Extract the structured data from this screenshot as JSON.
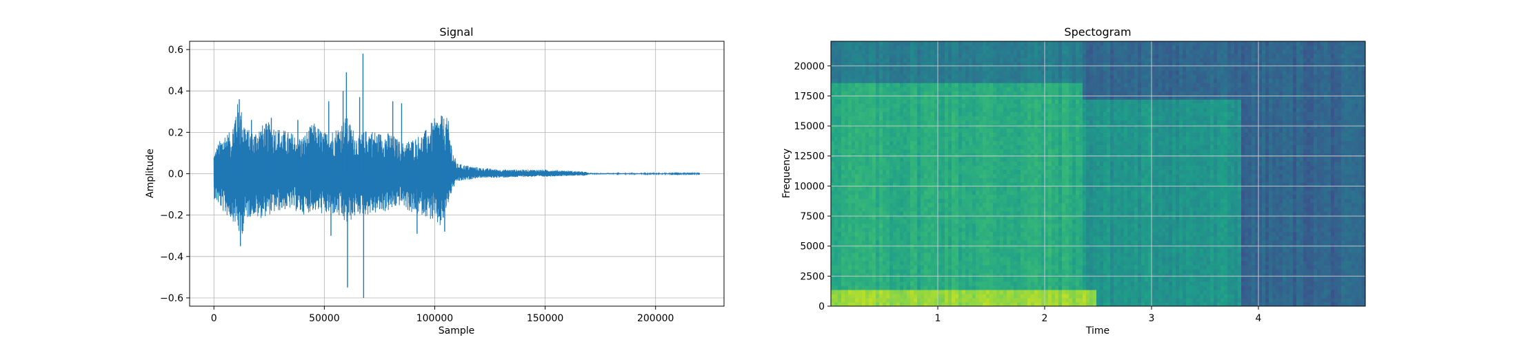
{
  "chart_data": [
    {
      "type": "line",
      "title": "Signal",
      "xlabel": "Sample",
      "ylabel": "Amplitude",
      "xlim": [
        -11000,
        231000
      ],
      "ylim": [
        -0.64,
        0.64
      ],
      "xticks": [
        0,
        50000,
        100000,
        150000,
        200000
      ],
      "xtick_labels": [
        "0",
        "50000",
        "100000",
        "150000",
        "200000"
      ],
      "yticks": [
        -0.6,
        -0.4,
        -0.2,
        0.0,
        0.2,
        0.4,
        0.6
      ],
      "ytick_labels": [
        "−0.6",
        "−0.4",
        "−0.2",
        "0.0",
        "0.2",
        "0.4",
        "0.6"
      ],
      "grid": true,
      "color": "#1f77b4",
      "series": [
        {
          "envelope": {
            "x": [
              0,
              2000,
              5000,
              8000,
              10000,
              12000,
              15000,
              18000,
              20000,
              25000,
              30000,
              35000,
              40000,
              45000,
              50000,
              55000,
              60000,
              65000,
              70000,
              75000,
              80000,
              85000,
              90000,
              95000,
              100000,
              103000,
              106000,
              108000,
              110000,
              115000,
              120000,
              130000,
              140000,
              150000,
              160000,
              168000,
              170000,
              220000
            ],
            "upper": [
              0.1,
              0.15,
              0.2,
              0.2,
              0.35,
              0.33,
              0.22,
              0.2,
              0.23,
              0.25,
              0.22,
              0.2,
              0.18,
              0.25,
              0.2,
              0.22,
              0.28,
              0.18,
              0.22,
              0.2,
              0.2,
              0.15,
              0.17,
              0.2,
              0.27,
              0.28,
              0.27,
              0.12,
              0.05,
              0.04,
              0.03,
              0.02,
              0.02,
              0.02,
              0.015,
              0.01,
              0.003,
              0.002
            ],
            "lower": [
              -0.12,
              -0.15,
              -0.2,
              -0.22,
              -0.25,
              -0.32,
              -0.22,
              -0.2,
              -0.22,
              -0.2,
              -0.18,
              -0.17,
              -0.2,
              -0.18,
              -0.2,
              -0.2,
              -0.25,
              -0.2,
              -0.2,
              -0.19,
              -0.18,
              -0.15,
              -0.2,
              -0.2,
              -0.24,
              -0.27,
              -0.15,
              -0.08,
              -0.04,
              -0.03,
              -0.02,
              -0.02,
              -0.015,
              -0.015,
              -0.01,
              -0.01,
              -0.003,
              -0.002
            ]
          },
          "spikes": [
            {
              "x": 11500,
              "y": 0.36
            },
            {
              "x": 12000,
              "y": -0.35
            },
            {
              "x": 17000,
              "y": 0.26
            },
            {
              "x": 26000,
              "y": 0.27
            },
            {
              "x": 38000,
              "y": 0.26
            },
            {
              "x": 52000,
              "y": 0.35
            },
            {
              "x": 53000,
              "y": -0.3
            },
            {
              "x": 58500,
              "y": 0.4
            },
            {
              "x": 60000,
              "y": 0.49
            },
            {
              "x": 60500,
              "y": -0.55
            },
            {
              "x": 66000,
              "y": 0.37
            },
            {
              "x": 67500,
              "y": 0.58
            },
            {
              "x": 67800,
              "y": -0.6
            },
            {
              "x": 81000,
              "y": 0.35
            },
            {
              "x": 85000,
              "y": 0.34
            },
            {
              "x": 92000,
              "y": -0.29
            },
            {
              "x": 103000,
              "y": 0.28
            },
            {
              "x": 104500,
              "y": -0.28
            }
          ]
        }
      ]
    },
    {
      "type": "heatmap",
      "title": "Spectogram",
      "xlabel": "Time",
      "ylabel": "Frequency",
      "xlim": [
        0,
        5.0
      ],
      "ylim": [
        0,
        22050
      ],
      "xticks": [
        1,
        2,
        3,
        4
      ],
      "xtick_labels": [
        "1",
        "2",
        "3",
        "4"
      ],
      "yticks": [
        0,
        2500,
        5000,
        7500,
        10000,
        12500,
        15000,
        17500,
        20000
      ],
      "ytick_labels": [
        "0",
        "2500",
        "5000",
        "7500",
        "10000",
        "12500",
        "15000",
        "17500",
        "20000"
      ],
      "grid": true,
      "colormap": "viridis",
      "regions": [
        {
          "t0": 0.0,
          "t1": 2.35,
          "f0": 18700,
          "f1": 22050,
          "level": 0.42
        },
        {
          "t0": 2.35,
          "t1": 3.85,
          "f0": 17300,
          "f1": 22050,
          "level": 0.33
        },
        {
          "t0": 0.0,
          "t1": 2.35,
          "f0": 0,
          "f1": 18700,
          "level": 0.62
        },
        {
          "t0": 2.35,
          "t1": 3.85,
          "f0": 0,
          "f1": 17300,
          "level": 0.52
        },
        {
          "t0": 3.85,
          "t1": 5.0,
          "f0": 0,
          "f1": 22050,
          "level": 0.32
        },
        {
          "t0": 0.0,
          "t1": 2.5,
          "f0": 0,
          "f1": 1500,
          "level": 0.85
        }
      ]
    }
  ]
}
